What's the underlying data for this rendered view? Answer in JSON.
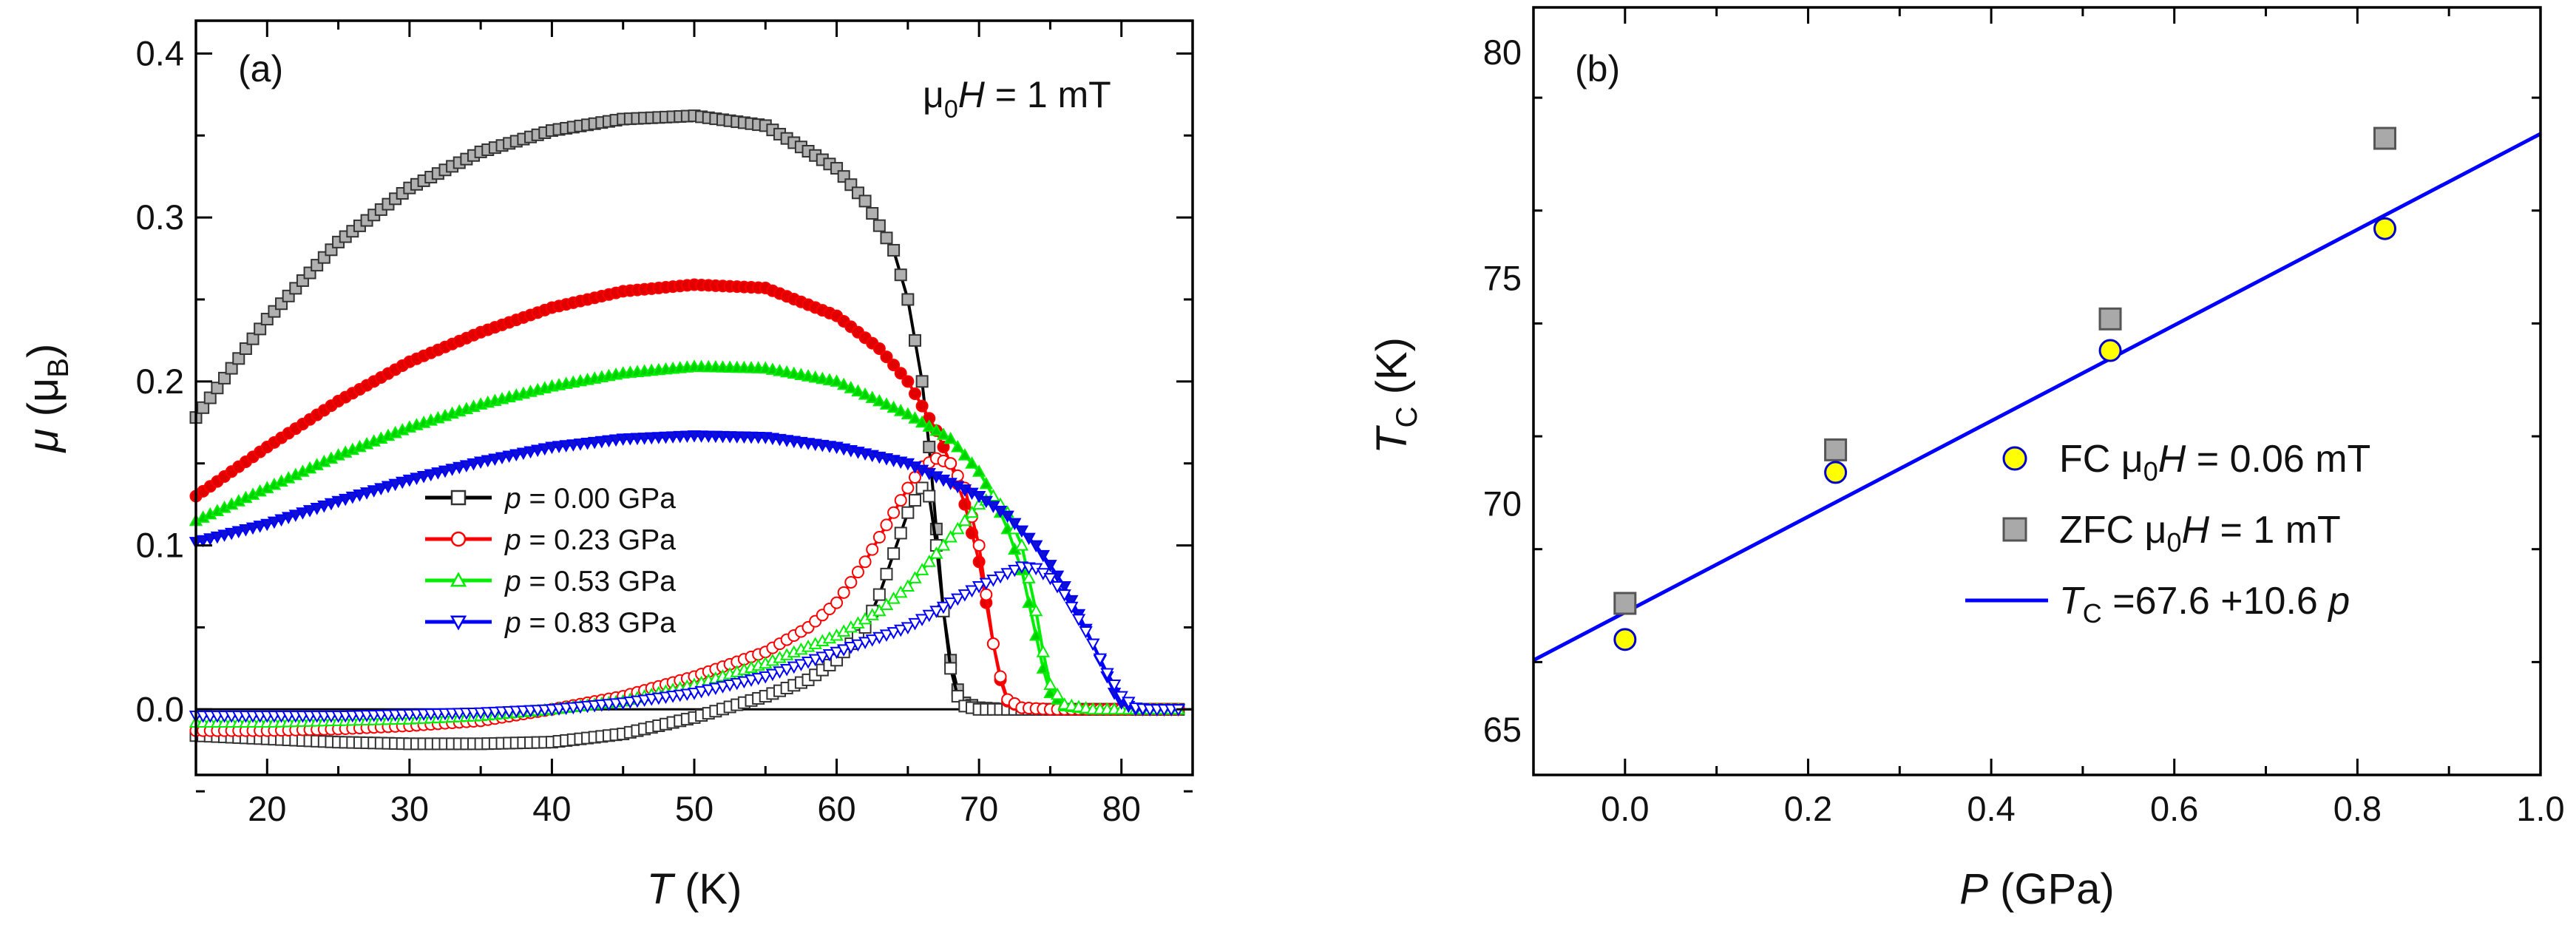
{
  "chart_data": [
    {
      "type": "line",
      "panel": "(a)",
      "annotation": {
        "prefix": "μ",
        "sub": "0",
        "italic": "H",
        "suffix": " = 1 mT"
      },
      "xlabel": {
        "italic": "T",
        "unit": " (K)"
      },
      "ylabel": {
        "italic": "μ",
        "unit": "μ",
        "unit_sub": "B"
      },
      "xlim": [
        15,
        85
      ],
      "ylim": [
        -0.04,
        0.42
      ],
      "xticks": [
        20,
        30,
        40,
        50,
        60,
        70,
        80
      ],
      "xtick_labels": [
        "20",
        "30",
        "40",
        "50",
        "60",
        "70",
        "80"
      ],
      "yticks": [
        0.0,
        0.1,
        0.2,
        0.3,
        0.4
      ],
      "ytick_labels": [
        "0.0",
        "0.1",
        "0.2",
        "0.3",
        "0.4"
      ],
      "legend_position": "center-left",
      "series": [
        {
          "name": "p = 0.00 GPa",
          "p_label": "p",
          "rest_label": " = 0.00 GPa",
          "pressure_gpa": 0.0,
          "color": "#000000",
          "marker": "square",
          "fill_zfc": "#b0b0b0",
          "fill_fc": "#ffffff",
          "zfc": {
            "x": [
              15,
              20,
              25,
              30,
              35,
              40,
              45,
              50,
              55,
              60,
              62,
              64,
              65,
              66,
              66.5,
              67,
              67.5,
              68,
              68.5,
              69,
              70,
              72,
              75,
              80,
              84
            ],
            "y": [
              0.178,
              0.238,
              0.285,
              0.318,
              0.34,
              0.353,
              0.36,
              0.362,
              0.356,
              0.33,
              0.31,
              0.28,
              0.25,
              0.2,
              0.16,
              0.11,
              0.06,
              0.03,
              0.012,
              0.004,
              0.001,
              0.0,
              0.0,
              0.0,
              0.0
            ]
          },
          "fc": {
            "x": [
              15,
              20,
              25,
              30,
              35,
              40,
              45,
              50,
              55,
              58,
              60,
              62,
              63,
              64,
              65,
              66,
              66.5,
              67,
              67.5,
              68,
              68.5,
              69,
              70,
              72,
              75,
              80,
              84
            ],
            "y": [
              -0.016,
              -0.018,
              -0.02,
              -0.021,
              -0.021,
              -0.02,
              -0.015,
              -0.005,
              0.008,
              0.018,
              0.03,
              0.05,
              0.07,
              0.095,
              0.12,
              0.135,
              0.13,
              0.1,
              0.06,
              0.025,
              0.008,
              0.002,
              0.0,
              0.0,
              0.0,
              0.0,
              0.0
            ]
          }
        },
        {
          "name": "p = 0.23 GPa",
          "p_label": "p",
          "rest_label": " = 0.23 GPa",
          "pressure_gpa": 0.23,
          "color": "#ff0000",
          "marker": "circle",
          "fill_zfc": "#e00000",
          "fill_fc": "#ffffff",
          "zfc": {
            "x": [
              15,
              20,
              25,
              30,
              35,
              40,
              45,
              50,
              55,
              60,
              63,
              65,
              67,
              68,
              69,
              70,
              70.5,
              71,
              71.5,
              72,
              73,
              75,
              80,
              84
            ],
            "y": [
              0.13,
              0.16,
              0.188,
              0.212,
              0.23,
              0.245,
              0.255,
              0.259,
              0.257,
              0.24,
              0.22,
              0.2,
              0.17,
              0.15,
              0.125,
              0.09,
              0.065,
              0.04,
              0.018,
              0.005,
              0.001,
              0.0,
              0.0,
              0.0
            ]
          },
          "fc": {
            "x": [
              15,
              20,
              25,
              30,
              35,
              40,
              45,
              50,
              55,
              58,
              60,
              62,
              64,
              65,
              66,
              67,
              68,
              69,
              70,
              70.5,
              71,
              71.5,
              72,
              73,
              75,
              80,
              84
            ],
            "y": [
              -0.013,
              -0.013,
              -0.012,
              -0.01,
              -0.007,
              0.0,
              0.008,
              0.02,
              0.035,
              0.05,
              0.065,
              0.09,
              0.12,
              0.135,
              0.148,
              0.153,
              0.15,
              0.135,
              0.1,
              0.07,
              0.04,
              0.02,
              0.006,
              0.001,
              0.0,
              0.0,
              0.0
            ]
          }
        },
        {
          "name": "p = 0.53 GPa",
          "p_label": "p",
          "rest_label": " = 0.53 GPa",
          "pressure_gpa": 0.53,
          "color": "#00ee00",
          "marker": "triangle-up",
          "fill_zfc": "#00d000",
          "fill_fc": "#ffffff",
          "zfc": {
            "x": [
              15,
              20,
              25,
              30,
              35,
              40,
              45,
              50,
              55,
              60,
              65,
              68,
              70,
              71,
              72,
              73,
              73.5,
              74,
              74.5,
              75,
              76,
              78,
              80,
              84
            ],
            "y": [
              0.115,
              0.135,
              0.155,
              0.172,
              0.186,
              0.197,
              0.205,
              0.209,
              0.208,
              0.2,
              0.18,
              0.165,
              0.145,
              0.13,
              0.11,
              0.085,
              0.065,
              0.045,
              0.025,
              0.01,
              0.002,
              0.0,
              0.0,
              0.0
            ]
          },
          "fc": {
            "x": [
              15,
              20,
              25,
              30,
              35,
              40,
              45,
              50,
              55,
              60,
              63,
              65,
              67,
              68,
              69,
              70,
              71,
              72,
              73,
              74,
              74.5,
              75,
              76,
              78,
              80,
              84
            ],
            "y": [
              -0.008,
              -0.008,
              -0.007,
              -0.006,
              -0.004,
              0.0,
              0.005,
              0.015,
              0.028,
              0.045,
              0.06,
              0.075,
              0.095,
              0.105,
              0.115,
              0.125,
              0.13,
              0.12,
              0.1,
              0.06,
              0.035,
              0.015,
              0.003,
              0.0,
              0.0,
              0.0
            ]
          }
        },
        {
          "name": "p = 0.83 GPa",
          "p_label": "p",
          "rest_label": " = 0.83 GPa",
          "pressure_gpa": 0.83,
          "color": "#0000ff",
          "marker": "triangle-down",
          "fill_zfc": "#1010d0",
          "fill_fc": "#ffffff",
          "zfc": {
            "x": [
              15,
              20,
              25,
              30,
              35,
              40,
              45,
              50,
              55,
              60,
              65,
              70,
              72,
              74,
              75,
              76,
              77,
              78,
              78.5,
              79,
              79.5,
              80,
              81,
              82,
              84
            ],
            "y": [
              0.102,
              0.113,
              0.127,
              0.14,
              0.151,
              0.16,
              0.165,
              0.167,
              0.166,
              0.16,
              0.15,
              0.13,
              0.118,
              0.1,
              0.088,
              0.075,
              0.058,
              0.04,
              0.03,
              0.02,
              0.01,
              0.004,
              0.0,
              0.0,
              0.0
            ]
          },
          "fc": {
            "x": [
              15,
              20,
              25,
              30,
              35,
              40,
              45,
              50,
              55,
              60,
              65,
              68,
              70,
              72,
              73,
              74,
              75,
              76,
              77,
              78,
              79,
              80,
              81,
              82,
              84
            ],
            "y": [
              -0.004,
              -0.004,
              -0.004,
              -0.003,
              -0.002,
              0.0,
              0.004,
              0.01,
              0.02,
              0.035,
              0.05,
              0.065,
              0.075,
              0.083,
              0.087,
              0.086,
              0.08,
              0.07,
              0.055,
              0.04,
              0.022,
              0.008,
              0.001,
              0.0,
              0.0
            ]
          }
        }
      ]
    },
    {
      "type": "scatter",
      "panel": "(b)",
      "xlabel": {
        "italic": "P",
        "unit": " (GPa)"
      },
      "ylabel": {
        "italic": "T",
        "sub": "C",
        "unit": " (K)"
      },
      "xlim": [
        -0.1,
        1.0
      ],
      "ylim": [
        64,
        81
      ],
      "xticks": [
        0.0,
        0.2,
        0.4,
        0.6,
        0.8,
        1.0
      ],
      "xtick_labels": [
        "0.0",
        "0.2",
        "0.4",
        "0.6",
        "0.8",
        "1.0"
      ],
      "yticks": [
        65,
        70,
        75,
        80
      ],
      "ytick_labels": [
        "65",
        "70",
        "75",
        "80"
      ],
      "legend_position": "center-right",
      "series": [
        {
          "name": "FC μ0H = 0.06 mT",
          "label_prefix": "FC μ",
          "label_sub": "0",
          "label_italic": "H",
          "label_suffix": " = 0.06 mT",
          "marker": "circle",
          "fill": "#ffff00",
          "stroke": "#0000cc",
          "x": [
            0.0,
            0.23,
            0.53,
            0.83
          ],
          "y": [
            67.0,
            70.7,
            73.4,
            76.1
          ]
        },
        {
          "name": "ZFC μ0H = 1 mT",
          "label_prefix": "ZFC μ",
          "label_sub": "0",
          "label_italic": "H",
          "label_suffix": " = 1 mT",
          "marker": "square",
          "fill": "#a9a9a9",
          "stroke": "#555555",
          "x": [
            0.0,
            0.23,
            0.53,
            0.83
          ],
          "y": [
            67.8,
            71.2,
            74.1,
            78.1
          ]
        }
      ],
      "fit": {
        "name": "TC =67.6 +10.6 p",
        "label_italic": "T",
        "label_sub": "C",
        "label_mid": " =67.6 +10.6 ",
        "label_var": "p",
        "intercept": 67.6,
        "slope": 10.6,
        "color": "#0000ff"
      }
    }
  ]
}
